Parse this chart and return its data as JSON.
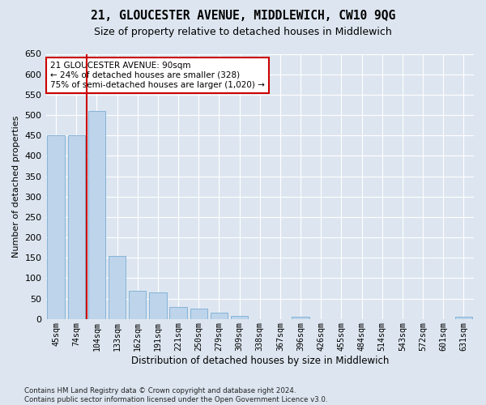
{
  "title1": "21, GLOUCESTER AVENUE, MIDDLEWICH, CW10 9QG",
  "title2": "Size of property relative to detached houses in Middlewich",
  "xlabel": "Distribution of detached houses by size in Middlewich",
  "ylabel": "Number of detached properties",
  "categories": [
    "45sqm",
    "74sqm",
    "104sqm",
    "133sqm",
    "162sqm",
    "191sqm",
    "221sqm",
    "250sqm",
    "279sqm",
    "309sqm",
    "338sqm",
    "367sqm",
    "396sqm",
    "426sqm",
    "455sqm",
    "484sqm",
    "514sqm",
    "543sqm",
    "572sqm",
    "601sqm",
    "631sqm"
  ],
  "values": [
    450,
    450,
    510,
    155,
    70,
    65,
    30,
    25,
    15,
    8,
    0,
    0,
    5,
    0,
    0,
    0,
    0,
    0,
    0,
    0,
    5
  ],
  "bar_color": "#bdd4eb",
  "bar_edge_color": "#7aadd4",
  "vline_color": "#cc0000",
  "vline_x": 1.5,
  "annotation_text": "21 GLOUCESTER AVENUE: 90sqm\n← 24% of detached houses are smaller (328)\n75% of semi-detached houses are larger (1,020) →",
  "annotation_box_facecolor": "#ffffff",
  "annotation_box_edgecolor": "#cc0000",
  "bg_color": "#dde6f0",
  "plot_bg_color": "#dde6f0",
  "grid_color": "#ffffff",
  "ylim": [
    0,
    650
  ],
  "yticks": [
    0,
    50,
    100,
    150,
    200,
    250,
    300,
    350,
    400,
    450,
    500,
    550,
    600,
    650
  ],
  "footnote": "Contains HM Land Registry data © Crown copyright and database right 2024.\nContains public sector information licensed under the Open Government Licence v3.0."
}
